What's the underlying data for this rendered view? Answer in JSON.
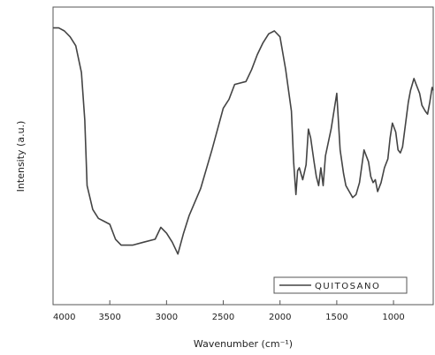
{
  "chart_data": {
    "type": "line",
    "xlabel": "Wavenumber (cm⁻¹)",
    "ylabel": "Intensity (a.u.)",
    "x_reversed": true,
    "xlim": [
      4000,
      650
    ],
    "ylim": [
      0,
      1
    ],
    "yticks_shown": false,
    "x_ticks": [
      4000,
      3500,
      3000,
      2500,
      2000,
      1500,
      1000
    ],
    "x_tick_labels": [
      "4000",
      "3500",
      "3000",
      "2500",
      "2000",
      "1500",
      "1000"
    ],
    "legend_position": "bottom-right",
    "series": [
      {
        "name": "QUITOSANO",
        "color": "#444444",
        "points": [
          [
            4000,
            0.93
          ],
          [
            3950,
            0.93
          ],
          [
            3900,
            0.92
          ],
          [
            3850,
            0.9
          ],
          [
            3800,
            0.87
          ],
          [
            3750,
            0.78
          ],
          [
            3720,
            0.62
          ],
          [
            3700,
            0.4
          ],
          [
            3650,
            0.32
          ],
          [
            3600,
            0.29
          ],
          [
            3550,
            0.28
          ],
          [
            3500,
            0.27
          ],
          [
            3450,
            0.22
          ],
          [
            3400,
            0.2
          ],
          [
            3300,
            0.2
          ],
          [
            3200,
            0.21
          ],
          [
            3100,
            0.22
          ],
          [
            3050,
            0.26
          ],
          [
            3000,
            0.24
          ],
          [
            2950,
            0.21
          ],
          [
            2900,
            0.17
          ],
          [
            2850,
            0.24
          ],
          [
            2800,
            0.3
          ],
          [
            2700,
            0.39
          ],
          [
            2600,
            0.52
          ],
          [
            2500,
            0.66
          ],
          [
            2450,
            0.69
          ],
          [
            2400,
            0.74
          ],
          [
            2300,
            0.75
          ],
          [
            2250,
            0.79
          ],
          [
            2200,
            0.84
          ],
          [
            2150,
            0.88
          ],
          [
            2100,
            0.91
          ],
          [
            2050,
            0.92
          ],
          [
            2000,
            0.9
          ],
          [
            1950,
            0.79
          ],
          [
            1900,
            0.65
          ],
          [
            1880,
            0.48
          ],
          [
            1860,
            0.37
          ],
          [
            1845,
            0.45
          ],
          [
            1830,
            0.46
          ],
          [
            1800,
            0.42
          ],
          [
            1770,
            0.47
          ],
          [
            1750,
            0.59
          ],
          [
            1730,
            0.56
          ],
          [
            1700,
            0.48
          ],
          [
            1680,
            0.43
          ],
          [
            1660,
            0.4
          ],
          [
            1640,
            0.46
          ],
          [
            1620,
            0.4
          ],
          [
            1600,
            0.5
          ],
          [
            1550,
            0.59
          ],
          [
            1500,
            0.71
          ],
          [
            1470,
            0.52
          ],
          [
            1440,
            0.44
          ],
          [
            1420,
            0.4
          ],
          [
            1390,
            0.38
          ],
          [
            1360,
            0.36
          ],
          [
            1330,
            0.37
          ],
          [
            1300,
            0.41
          ],
          [
            1260,
            0.52
          ],
          [
            1220,
            0.48
          ],
          [
            1200,
            0.43
          ],
          [
            1180,
            0.41
          ],
          [
            1160,
            0.42
          ],
          [
            1140,
            0.38
          ],
          [
            1110,
            0.41
          ],
          [
            1080,
            0.46
          ],
          [
            1050,
            0.49
          ],
          [
            1030,
            0.56
          ],
          [
            1010,
            0.61
          ],
          [
            980,
            0.58
          ],
          [
            960,
            0.52
          ],
          [
            940,
            0.51
          ],
          [
            920,
            0.53
          ],
          [
            890,
            0.62
          ],
          [
            870,
            0.68
          ],
          [
            850,
            0.72
          ],
          [
            820,
            0.76
          ],
          [
            800,
            0.74
          ],
          [
            770,
            0.71
          ],
          [
            750,
            0.67
          ],
          [
            720,
            0.65
          ],
          [
            700,
            0.64
          ],
          [
            680,
            0.68
          ],
          [
            660,
            0.73
          ],
          [
            650,
            0.72
          ]
        ]
      }
    ]
  }
}
